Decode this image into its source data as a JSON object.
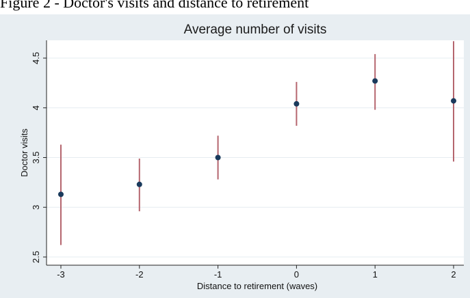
{
  "caption": "Figure 2 - Doctor's visits and distance to retirement",
  "chart_data": {
    "type": "scatter",
    "title": "Average number of visits",
    "xlabel": "Distance to retirement (waves)",
    "ylabel": "Doctor visits",
    "x": [
      -3,
      -2,
      -1,
      0,
      1,
      2
    ],
    "y": [
      3.13,
      3.23,
      3.5,
      4.04,
      4.27,
      4.07
    ],
    "ci_low": [
      2.62,
      2.96,
      3.28,
      3.82,
      3.98,
      3.46
    ],
    "ci_high": [
      3.63,
      3.49,
      3.72,
      4.26,
      4.54,
      4.67
    ],
    "xlim": [
      -3,
      2
    ],
    "ylim": [
      2.5,
      4.5
    ],
    "xticks": [
      "-3",
      "-2",
      "-1",
      "0",
      "1",
      "2"
    ],
    "yticks": [
      "2.5",
      "3",
      "3.5",
      "4",
      "4.5"
    ],
    "grid": true,
    "colors": {
      "background": "#e8eef2",
      "plot_area": "#ffffff",
      "grid": "#e6ecf0",
      "marker": "#1a3a5c",
      "error_bar": "#b5656e"
    }
  }
}
